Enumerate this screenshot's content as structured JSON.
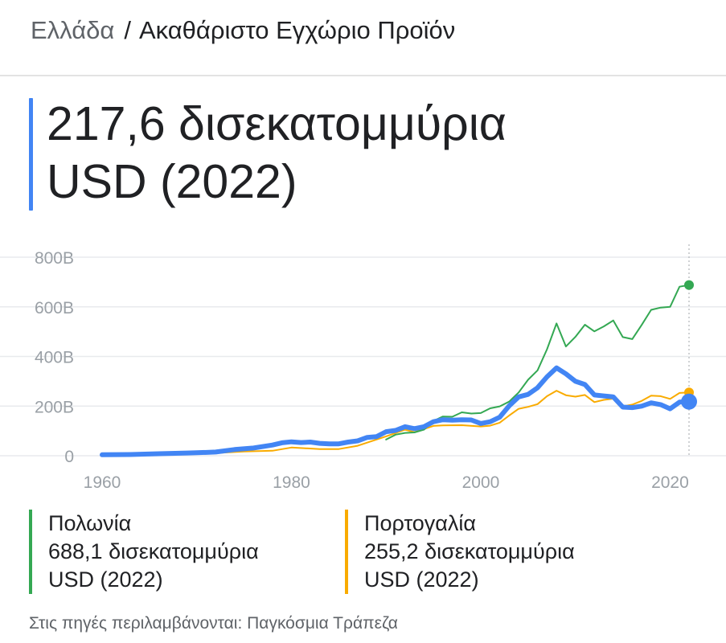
{
  "breadcrumb": {
    "country": "Ελλάδα",
    "separator": "/",
    "indicator": "Ακαθάριστο Εγχώριο Προϊόν"
  },
  "headline": {
    "value_line1": "217,6 δισεκατομμύρια",
    "value_line2": "USD (2022)"
  },
  "colors": {
    "greece": "#4285f4",
    "poland": "#34a853",
    "portugal": "#f9ab00",
    "grid": "#e8eaed",
    "axis_text": "#9aa0a6"
  },
  "legend": {
    "poland": {
      "name": "Πολωνία",
      "value_line1": "688,1 δισεκατομμύρια",
      "value_line2": "USD (2022)"
    },
    "portugal": {
      "name": "Πορτογαλία",
      "value_line1": "255,2 δισεκατομμύρια",
      "value_line2": "USD (2022)"
    }
  },
  "source": "Στις πηγές περιλαμβάνονται: Παγκόσμια Τράπεζα",
  "chart_data": {
    "type": "line",
    "xlim": [
      1960,
      2022
    ],
    "ylim": [
      0,
      800
    ],
    "x_ticks": [
      1960,
      1980,
      2000,
      2020
    ],
    "x_tick_labels": [
      "1960",
      "1980",
      "2000",
      "2020"
    ],
    "y_ticks": [
      0,
      200,
      400,
      600,
      800
    ],
    "y_tick_labels": [
      "0",
      "200B",
      "400B",
      "600B",
      "800B"
    ],
    "grid": true,
    "series": [
      {
        "key": "portugal",
        "name": "Πορτογαλία",
        "x": [
          1960,
          1965,
          1970,
          1973,
          1975,
          1978,
          1980,
          1983,
          1985,
          1987,
          1990,
          1992,
          1993,
          1995,
          1996,
          1998,
          2000,
          2001,
          2002,
          2003,
          2004,
          2005,
          2006,
          2007,
          2008,
          2009,
          2010,
          2011,
          2012,
          2013,
          2014,
          2015,
          2016,
          2017,
          2018,
          2019,
          2020,
          2021,
          2022
        ],
        "y": [
          3,
          4,
          7,
          13,
          17,
          20,
          33,
          27,
          27,
          40,
          78,
          105,
          95,
          120,
          122,
          123,
          118,
          121,
          133,
          162,
          189,
          197,
          208,
          240,
          262,
          244,
          238,
          245,
          216,
          225,
          230,
          199,
          206,
          221,
          242,
          240,
          229,
          253,
          255
        ]
      },
      {
        "key": "poland",
        "name": "Πολωνία",
        "x": [
          1990,
          1991,
          1992,
          1993,
          1994,
          1995,
          1996,
          1997,
          1998,
          1999,
          2000,
          2001,
          2002,
          2003,
          2004,
          2005,
          2006,
          2007,
          2008,
          2009,
          2010,
          2011,
          2012,
          2013,
          2014,
          2015,
          2016,
          2017,
          2018,
          2019,
          2020,
          2021,
          2022
        ],
        "y": [
          65,
          85,
          92,
          94,
          105,
          140,
          158,
          157,
          175,
          170,
          172,
          191,
          199,
          218,
          255,
          306,
          344,
          429,
          533,
          440,
          479,
          528,
          501,
          521,
          545,
          478,
          470,
          527,
          588,
          597,
          600,
          681,
          688
        ]
      },
      {
        "key": "greece",
        "name": "Ελλάδα",
        "x": [
          1960,
          1963,
          1966,
          1969,
          1970,
          1972,
          1974,
          1976,
          1978,
          1979,
          1980,
          1981,
          1982,
          1983,
          1984,
          1985,
          1986,
          1987,
          1988,
          1989,
          1990,
          1991,
          1992,
          1993,
          1994,
          1995,
          1996,
          1997,
          1998,
          1999,
          2000,
          2001,
          2002,
          2003,
          2004,
          2005,
          2006,
          2007,
          2008,
          2009,
          2010,
          2011,
          2012,
          2013,
          2014,
          2015,
          2016,
          2017,
          2018,
          2019,
          2020,
          2021,
          2022
        ],
        "y": [
          4,
          5,
          8,
          11,
          12,
          15,
          25,
          31,
          43,
          52,
          56,
          53,
          55,
          50,
          48,
          48,
          55,
          60,
          74,
          77,
          97,
          102,
          117,
          109,
          117,
          137,
          145,
          143,
          145,
          144,
          130,
          137,
          155,
          201,
          237,
          247,
          274,
          318,
          354,
          330,
          300,
          287,
          245,
          241,
          237,
          196,
          194,
          200,
          213,
          206,
          189,
          216,
          218
        ]
      }
    ]
  }
}
